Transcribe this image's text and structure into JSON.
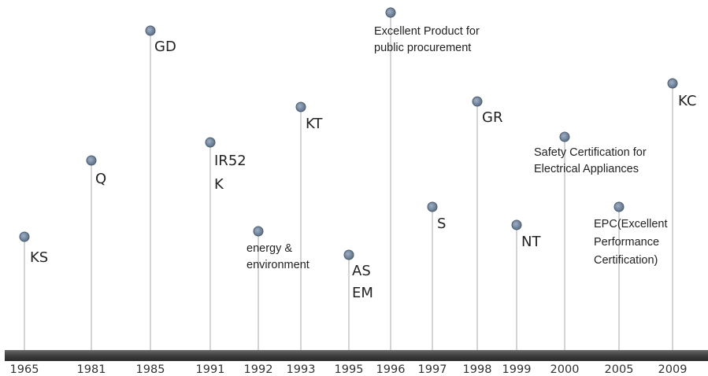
{
  "events": [
    {
      "year": "1965",
      "label": [
        "KS"
      ]
    },
    {
      "year": "1981",
      "label": [
        "Q"
      ]
    },
    {
      "year": "1985",
      "label": [
        "GD"
      ]
    },
    {
      "year": "1991",
      "label": [
        "IR52",
        "K"
      ]
    },
    {
      "year": "1992",
      "label": [
        "energy &",
        "environment"
      ]
    },
    {
      "year": "1993",
      "label": [
        "KT"
      ]
    },
    {
      "year": "1995",
      "label": [
        "AS",
        "EM"
      ]
    },
    {
      "year": "1996",
      "label": [
        "Excellent Product for",
        "public procurement"
      ]
    },
    {
      "year": "1997",
      "label": [
        "S"
      ]
    },
    {
      "year": "1998",
      "label": [
        "GR"
      ]
    },
    {
      "year": "1999",
      "label": [
        "NT"
      ]
    },
    {
      "year": "2000",
      "label": [
        "Safety Certification for",
        "Electrical Appliances"
      ]
    },
    {
      "year": "2005",
      "label": [
        "EPC(Excellent",
        "Performance",
        "Certification)"
      ]
    },
    {
      "year": "2009",
      "label": [
        "KC"
      ]
    }
  ]
}
